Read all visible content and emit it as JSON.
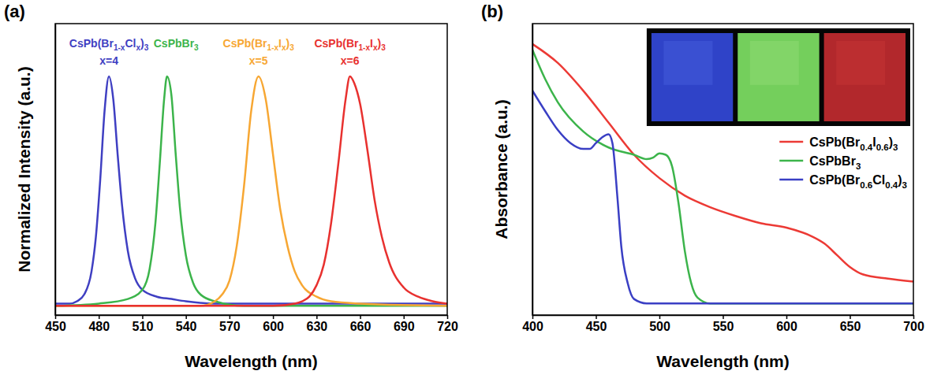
{
  "chart_data": [
    {
      "type": "line",
      "title": "(a)",
      "x_label": "Wavelength (nm)",
      "y_label": "Normalized Intensity (a.u.)",
      "xlim": [
        450,
        720
      ],
      "xticks": [
        450,
        480,
        510,
        540,
        570,
        600,
        630,
        660,
        690,
        720
      ],
      "ylim": [
        -0.04,
        1.23
      ],
      "tick_labels": "x",
      "series": [
        {
          "name": "CsPb(Br1-xClx)3",
          "annotation": "x=4",
          "color": "#3f3fc2",
          "x": [
            450,
            460,
            465,
            470,
            475,
            478,
            481,
            484,
            487,
            490,
            493,
            496,
            500,
            505,
            510,
            520,
            530,
            540,
            560,
            600,
            650,
            720
          ],
          "values": [
            0.01,
            0.01,
            0.02,
            0.05,
            0.15,
            0.3,
            0.55,
            0.85,
            1.0,
            0.9,
            0.66,
            0.44,
            0.24,
            0.12,
            0.07,
            0.04,
            0.03,
            0.02,
            0.01,
            0.01,
            0.01,
            0.01
          ]
        },
        {
          "name": "CsPbBr3",
          "color": "#3cb44b",
          "x": [
            450,
            480,
            500,
            510,
            515,
            519,
            522,
            525,
            527,
            530,
            533,
            536,
            540,
            545,
            550,
            560,
            580,
            720
          ],
          "values": [
            0.0,
            0.01,
            0.03,
            0.07,
            0.16,
            0.36,
            0.62,
            0.9,
            1.0,
            0.92,
            0.66,
            0.42,
            0.22,
            0.1,
            0.05,
            0.02,
            0.0,
            0.0
          ]
        },
        {
          "name": "CsPb(Br1-xIx)3",
          "annotation": "x=5",
          "color": "#f7a733",
          "x": [
            450,
            550,
            560,
            565,
            570,
            575,
            580,
            585,
            590,
            595,
            600,
            605,
            610,
            615,
            620,
            630,
            640,
            660,
            720
          ],
          "values": [
            0.0,
            0.0,
            0.02,
            0.05,
            0.11,
            0.26,
            0.52,
            0.85,
            1.0,
            0.9,
            0.66,
            0.42,
            0.26,
            0.15,
            0.09,
            0.04,
            0.02,
            0.01,
            0.0
          ]
        },
        {
          "name": "CsPb(Br1-xIx)3",
          "annotation": "x=6",
          "color": "#e8312f",
          "x": [
            450,
            600,
            615,
            620,
            625,
            630,
            635,
            640,
            645,
            650,
            653,
            656,
            660,
            665,
            670,
            675,
            680,
            690,
            700,
            710,
            720
          ],
          "values": [
            0.0,
            0.0,
            0.01,
            0.02,
            0.04,
            0.09,
            0.18,
            0.36,
            0.62,
            0.9,
            1.0,
            0.97,
            0.88,
            0.68,
            0.46,
            0.3,
            0.19,
            0.08,
            0.04,
            0.02,
            0.01
          ]
        }
      ]
    },
    {
      "type": "line",
      "title": "(b)",
      "x_label": "Wavelength (nm)",
      "y_label": "Absorbance (a.u.)",
      "xlim": [
        400,
        700
      ],
      "xticks": [
        400,
        450,
        500,
        550,
        600,
        650,
        700
      ],
      "ylim": [
        0,
        1
      ],
      "tick_labels": "x",
      "legend": "right",
      "series": [
        {
          "name": "CsPb(Br0.4I0.6)3",
          "color": "#ec3a35",
          "x": [
            400,
            420,
            440,
            460,
            480,
            500,
            520,
            540,
            560,
            580,
            600,
            620,
            630,
            640,
            650,
            660,
            680,
            700
          ],
          "values": [
            0.93,
            0.865,
            0.77,
            0.66,
            0.55,
            0.47,
            0.41,
            0.37,
            0.34,
            0.315,
            0.3,
            0.27,
            0.245,
            0.205,
            0.165,
            0.14,
            0.125,
            0.115
          ]
        },
        {
          "name": "CsPbBr3",
          "color": "#3cb44b",
          "x": [
            400,
            410,
            420,
            440,
            460,
            480,
            490,
            495,
            500,
            505,
            510,
            515,
            520,
            525,
            530,
            540,
            560,
            700
          ],
          "values": [
            0.91,
            0.81,
            0.73,
            0.63,
            0.575,
            0.55,
            0.535,
            0.54,
            0.555,
            0.55,
            0.51,
            0.385,
            0.22,
            0.11,
            0.06,
            0.04,
            0.04,
            0.04
          ]
        },
        {
          "name": "CsPb(Br0.6Cl0.4)3",
          "color": "#3a3fc4",
          "x": [
            400,
            410,
            420,
            430,
            440,
            445,
            450,
            455,
            460,
            463,
            467,
            470,
            475,
            480,
            490,
            700
          ],
          "values": [
            0.77,
            0.7,
            0.635,
            0.59,
            0.57,
            0.57,
            0.59,
            0.61,
            0.62,
            0.59,
            0.4,
            0.235,
            0.11,
            0.055,
            0.04,
            0.04
          ]
        }
      ]
    }
  ]
}
